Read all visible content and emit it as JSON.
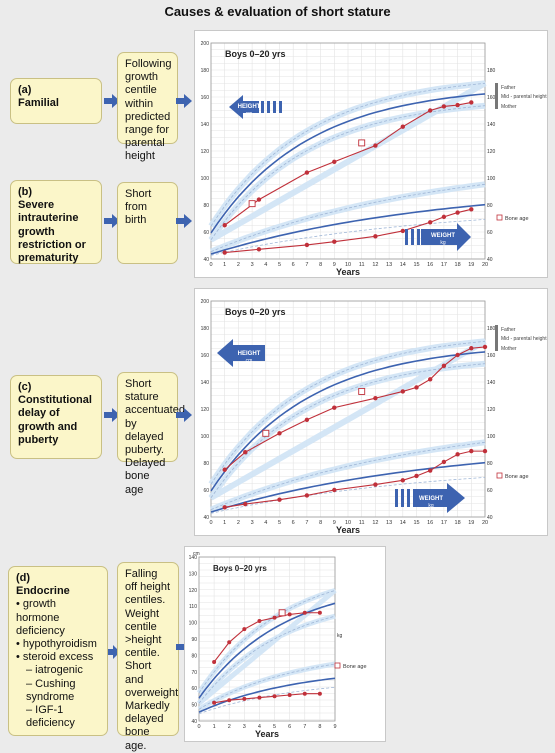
{
  "title": "Causes & evaluation of short stature",
  "panels": [
    {
      "label_letter": "(a)",
      "label_text": "Familial",
      "description": "Following growth centile within predicted range for parental height",
      "chart_title": "Boys 0–20 yrs"
    },
    {
      "label_letter": "(b)",
      "label_text": "Severe intrauterine growth restriction or prematurity",
      "description": "Short from birth"
    },
    {
      "label_letter": "(c)",
      "label_text": "Constitutional delay of growth and puberty",
      "description": "Short stature accentuated by delayed puberty. Delayed bone age",
      "chart_title": "Boys 0–20 yrs"
    },
    {
      "label_letter": "(d)",
      "label_text": "Endocrine",
      "items": [
        "growth hormone deficiency",
        "hypothyroidism",
        "steroid excess"
      ],
      "subitems": [
        "– iatrogenic",
        "– Cushing syndrome",
        "– IGF-1 deficiency"
      ],
      "description": "Falling off height centiles. Weight centile >height centile. Short and overweight Markedly delayed bone age.",
      "chart_title": "Boys 0–20 yrs"
    }
  ],
  "chart_labels": {
    "height_arrow": "HEIGHT",
    "height_unit": "cm",
    "weight_arrow": "WEIGHT",
    "weight_unit": "kg",
    "years": "Years",
    "bone_age": "Bone age",
    "father": "Father",
    "mid_parental": "Mid - parental height",
    "mother": "Mother",
    "cm": "cm",
    "kg": "kg"
  },
  "colors": {
    "accent": "#3d63b0",
    "data_red": "#c0303a",
    "box_fill": "#fbf6c9",
    "band": "#cfe3f5"
  },
  "chart_data": [
    {
      "type": "line",
      "title": "Boys 0–20 yrs",
      "xlabel": "Years",
      "xlim": [
        0,
        20
      ],
      "height_ylim": [
        40,
        200
      ],
      "weight_ylim": [
        0,
        200
      ],
      "series": [
        {
          "name": "HEIGHT",
          "x": [
            1,
            3.5,
            7,
            9,
            12,
            14,
            16,
            17,
            18,
            19
          ],
          "y": [
            65,
            84,
            104,
            112,
            124,
            138,
            150,
            153,
            154,
            156
          ]
        },
        {
          "name": "WEIGHT",
          "x": [
            1,
            3.5,
            7,
            9,
            12,
            14,
            16,
            17,
            18,
            19
          ],
          "y": [
            6,
            9,
            13,
            16,
            21,
            26,
            34,
            39,
            43,
            46
          ]
        },
        {
          "name": "Bone age",
          "x": [
            11,
            3
          ],
          "y": [
            126,
            81
          ]
        }
      ]
    },
    {
      "type": "line",
      "title": "Boys 0–20 yrs",
      "xlabel": "Years",
      "xlim": [
        0,
        20
      ],
      "height_ylim": [
        40,
        200
      ],
      "weight_ylim": [
        0,
        200
      ],
      "series": [
        {
          "name": "HEIGHT",
          "x": [
            1,
            2.5,
            5,
            7,
            9,
            12,
            14,
            15,
            16,
            17,
            18,
            19,
            20
          ],
          "y": [
            75,
            88,
            102,
            112,
            121,
            128,
            133,
            136,
            142,
            152,
            160,
            165,
            166
          ]
        },
        {
          "name": "WEIGHT",
          "x": [
            1,
            2.5,
            5,
            7,
            9,
            12,
            14,
            15,
            16,
            17,
            18,
            19,
            20
          ],
          "y": [
            9,
            12,
            16,
            20,
            25,
            30,
            34,
            38,
            43,
            51,
            58,
            61,
            61
          ]
        },
        {
          "name": "Bone age",
          "x": [
            11,
            4
          ],
          "y": [
            133,
            102
          ]
        }
      ]
    },
    {
      "type": "line",
      "title": "Boys 0–20 yrs",
      "xlabel": "Years",
      "xlim": [
        0,
        9
      ],
      "height_ylim": [
        40,
        140
      ],
      "weight_ylim": [
        0,
        30
      ],
      "series": [
        {
          "name": "HEIGHT",
          "x": [
            1,
            2,
            3,
            4,
            5,
            6,
            7,
            8
          ],
          "y": [
            76,
            88,
            96,
            101,
            103,
            105,
            106,
            106
          ]
        },
        {
          "name": "WEIGHT",
          "x": [
            1,
            2,
            3,
            4,
            5,
            6,
            7,
            8
          ],
          "y": [
            7,
            8,
            8.5,
            9,
            9.5,
            10,
            10.5,
            10.5
          ]
        },
        {
          "name": "Bone age",
          "x": [
            5.5
          ],
          "y": [
            106
          ]
        }
      ]
    }
  ]
}
